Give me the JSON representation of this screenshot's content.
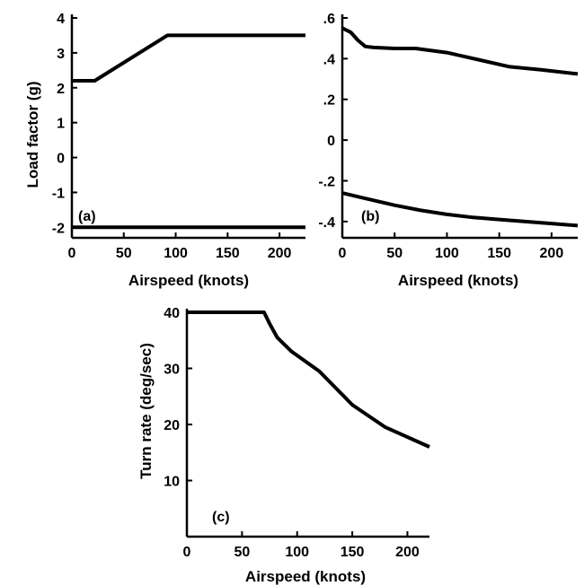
{
  "chart_data": [
    {
      "type": "line",
      "panel_label": "(a)",
      "xlabel": "Airspeed (knots)",
      "ylabel": "Load factor (g)",
      "xlim": [
        0,
        225
      ],
      "ylim": [
        -2.3,
        4
      ],
      "xticks": [
        0,
        50,
        100,
        150,
        200
      ],
      "xtick_labels": [
        "0",
        "50",
        "100",
        "150",
        "200"
      ],
      "yticks": [
        4,
        3,
        2,
        1,
        0,
        -1,
        -2
      ],
      "ytick_labels": [
        "4",
        "3",
        "2",
        "1",
        "0",
        "-1",
        "-2"
      ],
      "series": [
        {
          "x": [
            0,
            22,
            92,
            225
          ],
          "y": [
            2.2,
            2.2,
            3.5,
            3.5
          ]
        },
        {
          "x": [
            0,
            225
          ],
          "y": [
            -2.0,
            -2.0
          ]
        }
      ]
    },
    {
      "type": "line",
      "panel_label": "(b)",
      "xlabel": "Airspeed (knots)",
      "ylabel": "",
      "xlim": [
        0,
        225
      ],
      "ylim": [
        -0.48,
        0.6
      ],
      "xticks": [
        0,
        50,
        100,
        150,
        200
      ],
      "xtick_labels": [
        "0",
        "50",
        "100",
        "150",
        "200"
      ],
      "yticks": [
        0.6,
        0.4,
        0.2,
        0,
        -0.2,
        -0.4
      ],
      "ytick_labels": [
        ".6",
        ".4",
        ".2",
        "0",
        "-.2",
        "-.4"
      ],
      "series": [
        {
          "x": [
            0,
            8,
            15,
            22,
            30,
            50,
            70,
            100,
            130,
            160,
            190,
            225
          ],
          "y": [
            0.55,
            0.53,
            0.49,
            0.46,
            0.455,
            0.45,
            0.45,
            0.43,
            0.395,
            0.36,
            0.345,
            0.325
          ]
        },
        {
          "x": [
            0,
            25,
            50,
            75,
            100,
            125,
            150,
            175,
            200,
            225
          ],
          "y": [
            -0.26,
            -0.29,
            -0.32,
            -0.345,
            -0.365,
            -0.38,
            -0.39,
            -0.4,
            -0.41,
            -0.42
          ]
        }
      ]
    },
    {
      "type": "line",
      "panel_label": "(c)",
      "xlabel": "Airspeed (knots)",
      "ylabel": "Turn rate (deg/sec)",
      "xlim": [
        0,
        220
      ],
      "ylim": [
        0,
        40
      ],
      "xticks": [
        0,
        50,
        100,
        150,
        200
      ],
      "xtick_labels": [
        "0",
        "50",
        "100",
        "150",
        "200"
      ],
      "yticks": [
        40,
        30,
        20,
        10
      ],
      "ytick_labels": [
        "40",
        "30",
        "20",
        "10"
      ],
      "series": [
        {
          "x": [
            0,
            70,
            75,
            82,
            95,
            120,
            150,
            180,
            220
          ],
          "y": [
            40,
            40,
            38,
            35.5,
            33,
            29.5,
            23.5,
            19.5,
            16
          ]
        }
      ]
    }
  ]
}
